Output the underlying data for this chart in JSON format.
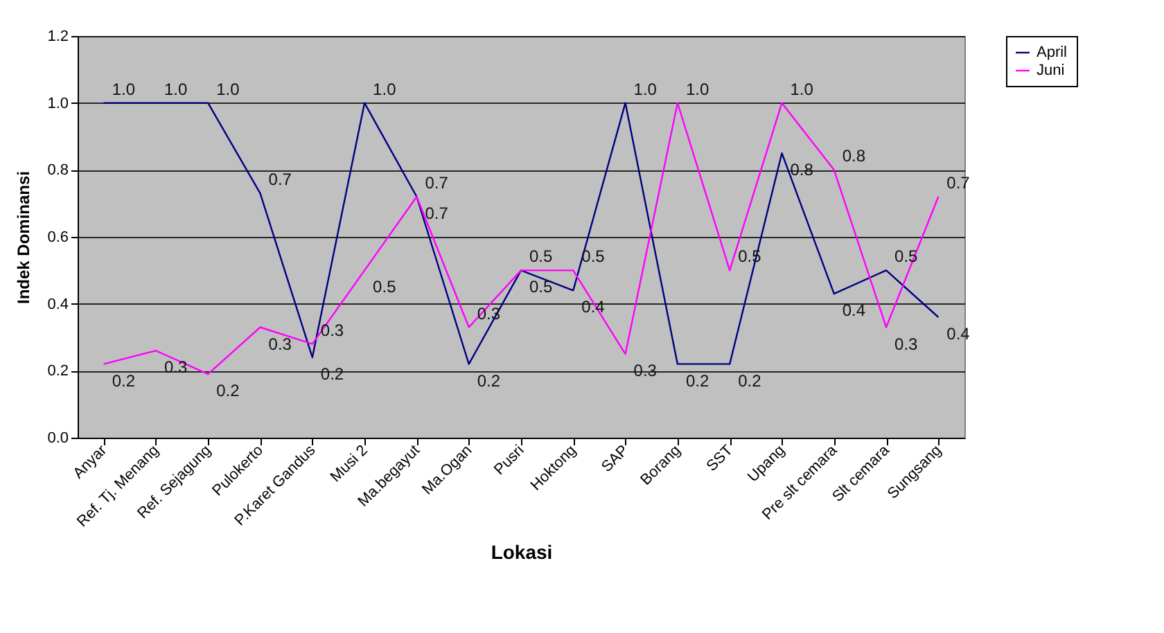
{
  "chart_data": {
    "type": "line",
    "xlabel": "Lokasi",
    "ylabel": "Indek Dominansi",
    "categories": [
      "Anyar",
      "Ref. Tj. Menang",
      "Ref. Sejagung",
      "Pulokerto",
      "P.Karet Gandus",
      "Musi 2",
      "Ma.begayut",
      "Ma.Ogan",
      "Pusri",
      "Hoktong",
      "SAP",
      "Borang",
      "SST",
      "Upang",
      "Pre slt cemara",
      "Slt cemara",
      "Sungsang"
    ],
    "series": [
      {
        "name": "April",
        "color": "#000080",
        "values": [
          1.0,
          1.0,
          1.0,
          0.73,
          0.24,
          1.0,
          0.72,
          0.22,
          0.5,
          0.44,
          1.0,
          0.22,
          0.22,
          0.85,
          0.43,
          0.5,
          0.36
        ],
        "value_labels": [
          "1.0",
          "1.0",
          "1.0",
          "0.7",
          "0.2",
          "1.0",
          "0.7",
          "0.2",
          "0.5",
          "0.4",
          "1.0",
          "0.2",
          "0.2",
          "0.8",
          "0.4",
          "0.5",
          "0.4"
        ]
      },
      {
        "name": "Juni",
        "color": "#ff00ff",
        "values": [
          0.22,
          0.26,
          0.19,
          0.33,
          0.28,
          0.5,
          0.72,
          0.33,
          0.5,
          0.5,
          0.25,
          1.0,
          0.5,
          1.0,
          0.8,
          0.33,
          0.72
        ],
        "value_labels": [
          "0.2",
          "0.3",
          "0.2",
          "0.3",
          "0.3",
          "0.5",
          "0.7",
          "0.3",
          "0.5",
          "0.5",
          "0.3",
          "1.0",
          "0.5",
          "1.0",
          "0.8",
          "0.3",
          "0.7"
        ]
      }
    ],
    "ylim": [
      0,
      1.2
    ],
    "yticks": [
      {
        "value": 0,
        "label": "0.0"
      },
      {
        "value": 0.2,
        "label": "0.2"
      },
      {
        "value": 0.4,
        "label": "0.4"
      },
      {
        "value": 0.6,
        "label": "0.6"
      },
      {
        "value": 0.8,
        "label": "0.8"
      },
      {
        "value": 1.0,
        "label": "1.0"
      },
      {
        "value": 1.2,
        "label": "1.2"
      }
    ],
    "grid": "y",
    "legend": "right",
    "marker": "none",
    "line_style": "solid"
  }
}
